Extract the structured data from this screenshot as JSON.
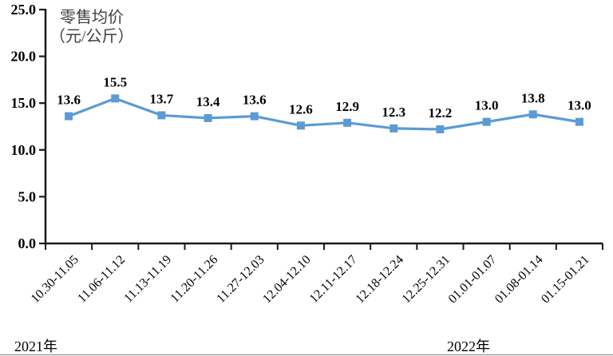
{
  "chart_data": {
    "type": "line",
    "title_lines": [
      "零售均价",
      "（元/公斤）"
    ],
    "categories": [
      "10.30-11.05",
      "11.06-11.12",
      "11.13-11.19",
      "11.20-11.26",
      "11.27-12.03",
      "12.04-12.10",
      "12.11-12.17",
      "12.18-12.24",
      "12.25-12.31",
      "01.01-01.07",
      "01.08-01.14",
      "01.15-01.21"
    ],
    "values": [
      13.6,
      15.5,
      13.7,
      13.4,
      13.6,
      12.6,
      12.9,
      12.3,
      12.2,
      13.0,
      13.8,
      13.0
    ],
    "data_labels": [
      "13.6",
      "15.5",
      "13.7",
      "13.4",
      "13.6",
      "12.6",
      "12.9",
      "12.3",
      "12.2",
      "13.0",
      "13.8",
      "13.0"
    ],
    "ylim": [
      0,
      25
    ],
    "y_ticks": [
      "0.0",
      "5.0",
      "10.0",
      "15.0",
      "20.0",
      "25.0"
    ],
    "y_tick_values": [
      0,
      5,
      10,
      15,
      20,
      25
    ],
    "year_labels": [
      "2021年",
      "2022年"
    ],
    "line_color": "#5B9BD5",
    "axis_color": "#1a1a1a",
    "label_color": "#000000",
    "title_color": "#404040",
    "grid": false,
    "legend_position": "none",
    "xlabel": "",
    "ylabel": "零售均价（元/公斤）"
  }
}
